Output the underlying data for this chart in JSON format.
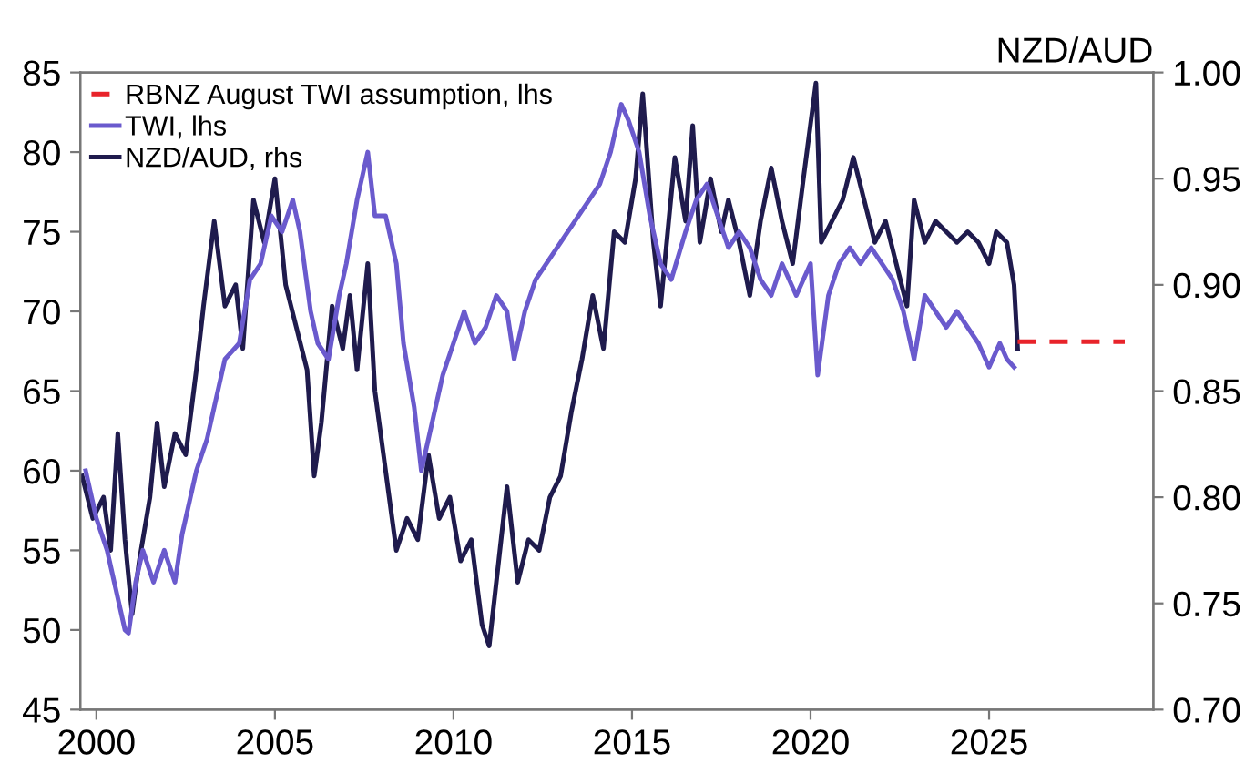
{
  "chart_data": {
    "type": "line",
    "y2label": "NZD/AUD",
    "xlim": [
      1999.55,
      2029.6
    ],
    "xticks": [
      2000,
      2005,
      2010,
      2015,
      2020,
      2025
    ],
    "ylim": [
      45,
      85
    ],
    "yticks": [
      45,
      50,
      55,
      60,
      65,
      70,
      75,
      80,
      85
    ],
    "y2lim": [
      0.7,
      1.0
    ],
    "y2ticks": [
      {
        "value": 0.7,
        "label": "0.70"
      },
      {
        "value": 0.75,
        "label": "0.75"
      },
      {
        "value": 0.8,
        "label": "0.80"
      },
      {
        "value": 0.85,
        "label": "0.85"
      },
      {
        "value": 0.9,
        "label": "0.90"
      },
      {
        "value": 0.95,
        "label": "0.95"
      },
      {
        "value": 1.0,
        "label": "1.00"
      }
    ],
    "grid": false,
    "legend": "top left",
    "marker": "none",
    "series": [
      {
        "name": "RBNZ August TWI assumption, lhs",
        "color": "#e8232a",
        "line_style": "dashed",
        "x": [
          2025.8,
          2028.8
        ],
        "values": [
          68.1,
          68.1
        ]
      },
      {
        "name": "TWI, lhs",
        "color": "#6a5acd",
        "line_style": "solid",
        "x": [
          1999.7,
          2000.0,
          2000.3,
          2000.5,
          2000.8,
          2000.9,
          2001.1,
          2001.3,
          2001.6,
          2001.9,
          2002.2,
          2002.4,
          2002.8,
          2003.1,
          2003.4,
          2003.6,
          2004.0,
          2004.3,
          2004.6,
          2004.9,
          2005.2,
          2005.5,
          2005.7,
          2006.0,
          2006.2,
          2006.5,
          2006.8,
          2007.0,
          2007.3,
          2007.6,
          2007.8,
          2008.1,
          2008.4,
          2008.6,
          2008.9,
          2009.1,
          2009.4,
          2009.7,
          2010.0,
          2010.3,
          2010.6,
          2010.9,
          2011.2,
          2011.5,
          2011.7,
          2012.0,
          2012.3,
          2012.6,
          2012.9,
          2013.2,
          2013.5,
          2013.8,
          2014.1,
          2014.4,
          2014.7,
          2014.9,
          2015.2,
          2015.5,
          2015.8,
          2016.1,
          2016.5,
          2016.8,
          2017.1,
          2017.4,
          2017.7,
          2018.0,
          2018.3,
          2018.6,
          2018.9,
          2019.2,
          2019.6,
          2020.0,
          2020.2,
          2020.5,
          2020.8,
          2021.1,
          2021.4,
          2021.7,
          2022.0,
          2022.3,
          2022.6,
          2022.9,
          2023.2,
          2023.5,
          2023.8,
          2024.1,
          2024.4,
          2024.7,
          2025.0,
          2025.3,
          2025.5,
          2025.7
        ],
        "values": [
          60,
          57,
          55,
          53,
          50,
          49.8,
          53,
          55,
          53,
          55,
          53,
          56,
          60,
          62,
          65,
          67,
          68,
          72,
          73,
          76,
          75,
          77,
          75,
          70,
          68,
          67,
          71,
          73,
          77,
          80,
          76,
          76,
          73,
          68,
          64,
          60,
          63,
          66,
          68,
          70,
          68,
          69,
          71,
          70,
          67,
          70,
          72,
          73,
          74,
          75,
          76,
          77,
          78,
          80,
          83,
          82,
          80,
          76,
          73,
          72,
          75,
          77,
          78,
          76,
          74,
          75,
          74,
          72,
          71,
          73,
          71,
          73,
          66,
          71,
          73,
          74,
          73,
          74,
          73,
          72,
          70,
          67,
          71,
          70,
          69,
          70,
          69,
          68,
          66.5,
          68,
          67,
          66.5
        ]
      },
      {
        "name": "NZD/AUD, rhs",
        "color": "#1f1b4d",
        "line_style": "solid",
        "axis": "y2",
        "x": [
          1999.6,
          1999.9,
          2000.2,
          2000.4,
          2000.6,
          2000.8,
          2001.0,
          2001.2,
          2001.5,
          2001.7,
          2001.9,
          2002.2,
          2002.5,
          2002.8,
          2003.0,
          2003.3,
          2003.6,
          2003.9,
          2004.1,
          2004.4,
          2004.7,
          2005.0,
          2005.3,
          2005.6,
          2005.9,
          2006.1,
          2006.3,
          2006.6,
          2006.9,
          2007.1,
          2007.3,
          2007.6,
          2007.8,
          2008.2,
          2008.4,
          2008.7,
          2009.0,
          2009.3,
          2009.6,
          2009.9,
          2010.2,
          2010.5,
          2010.8,
          2011.0,
          2011.2,
          2011.5,
          2011.8,
          2012.1,
          2012.4,
          2012.7,
          2013.0,
          2013.3,
          2013.6,
          2013.9,
          2014.2,
          2014.5,
          2014.8,
          2015.1,
          2015.3,
          2015.6,
          2015.8,
          2016.0,
          2016.2,
          2016.5,
          2016.7,
          2016.9,
          2017.2,
          2017.5,
          2017.7,
          2018.0,
          2018.3,
          2018.6,
          2018.9,
          2019.2,
          2019.5,
          2019.8,
          2020.15,
          2020.3,
          2020.6,
          2020.9,
          2021.2,
          2021.5,
          2021.8,
          2022.1,
          2022.4,
          2022.7,
          2022.9,
          2023.2,
          2023.5,
          2023.8,
          2024.1,
          2024.4,
          2024.7,
          2025.0,
          2025.2,
          2025.5,
          2025.7,
          2025.8
        ],
        "values": [
          0.81,
          0.79,
          0.8,
          0.775,
          0.83,
          0.78,
          0.745,
          0.77,
          0.8,
          0.835,
          0.805,
          0.83,
          0.82,
          0.86,
          0.89,
          0.93,
          0.89,
          0.9,
          0.87,
          0.94,
          0.92,
          0.95,
          0.9,
          0.88,
          0.86,
          0.81,
          0.835,
          0.89,
          0.87,
          0.895,
          0.86,
          0.91,
          0.85,
          0.8,
          0.775,
          0.79,
          0.78,
          0.82,
          0.79,
          0.8,
          0.77,
          0.78,
          0.74,
          0.73,
          0.76,
          0.805,
          0.76,
          0.78,
          0.775,
          0.8,
          0.81,
          0.84,
          0.865,
          0.895,
          0.87,
          0.925,
          0.92,
          0.95,
          0.99,
          0.92,
          0.89,
          0.925,
          0.96,
          0.93,
          0.975,
          0.92,
          0.95,
          0.925,
          0.94,
          0.92,
          0.895,
          0.93,
          0.955,
          0.93,
          0.91,
          0.95,
          0.995,
          0.92,
          0.93,
          0.94,
          0.96,
          0.94,
          0.92,
          0.93,
          0.91,
          0.89,
          0.94,
          0.92,
          0.93,
          0.925,
          0.92,
          0.925,
          0.92,
          0.91,
          0.925,
          0.92,
          0.9,
          0.87
        ]
      }
    ]
  }
}
